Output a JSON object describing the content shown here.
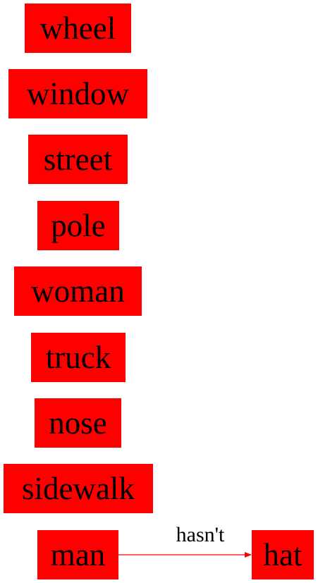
{
  "diagram": {
    "colors": {
      "node_fill": "#ff0000",
      "edge_stroke": "#ff0000",
      "text": "#000000"
    },
    "nodes": {
      "wheel": "wheel",
      "window": "window",
      "street": "street",
      "pole": "pole",
      "woman": "woman",
      "truck": "truck",
      "nose": "nose",
      "sidewalk": "sidewalk",
      "man": "man",
      "hat": "hat"
    },
    "edges": [
      {
        "from": "man",
        "to": "hat",
        "label": "hasn't"
      }
    ]
  }
}
